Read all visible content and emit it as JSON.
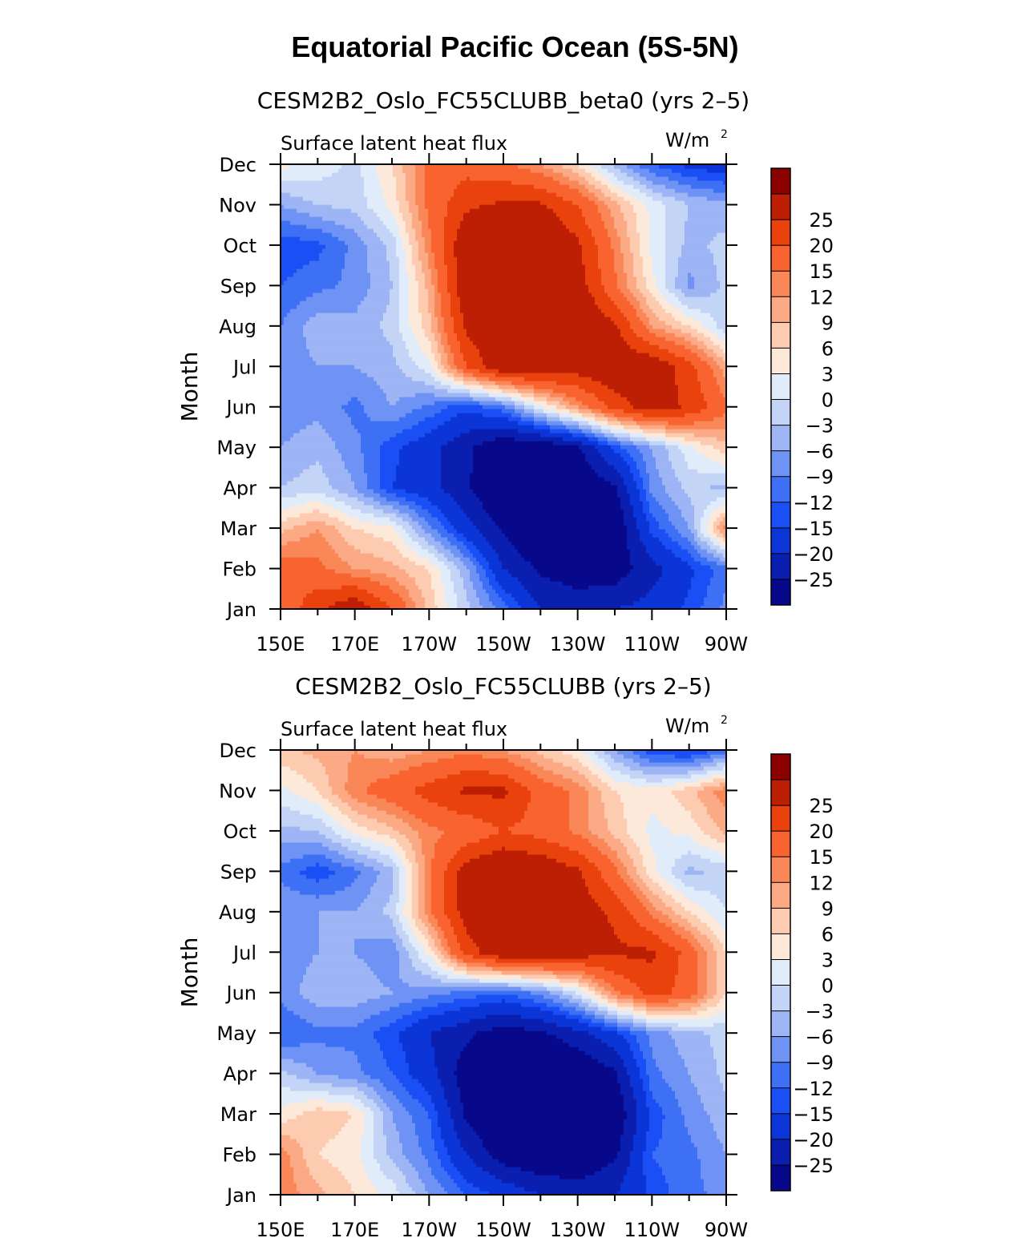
{
  "figure": {
    "title": "Equatorial Pacific Ocean (5S-5N)"
  },
  "colorbar": {
    "colors": [
      "#08088a",
      "#0a1fb0",
      "#0b35d6",
      "#1a4ff5",
      "#3e70f5",
      "#6f93f5",
      "#9db5f5",
      "#c3d4f6",
      "#e1ecfa",
      "#fde9d9",
      "#fccbb0",
      "#fbaa85",
      "#fa8758",
      "#f86330",
      "#e9420c",
      "#bd1f05",
      "#8c0000"
    ],
    "levels": [
      "-25",
      "-20",
      "-15",
      "-12",
      "-9",
      "-6",
      "-3",
      "0",
      "3",
      "6",
      "9",
      "12",
      "15",
      "20",
      "25"
    ]
  },
  "chart_data": [
    {
      "type": "heatmap",
      "title": "CESM2B2_Oslo_FC55CLUBB_beta0 (yrs 2–5)",
      "subtitle_left": "Surface latent heat flux",
      "units": "W/m",
      "units_sup": "2",
      "ylabel": "Month",
      "xticks": [
        "150E",
        "170E",
        "170W",
        "150W",
        "130W",
        "110W",
        "90W"
      ],
      "yticks": [
        "Jan",
        "Feb",
        "Mar",
        "Apr",
        "May",
        "Jun",
        "Jul",
        "Aug",
        "Sep",
        "Oct",
        "Nov",
        "Dec"
      ],
      "x_lon_east": [
        150,
        160,
        170,
        180,
        190,
        200,
        210,
        220,
        230,
        240,
        250,
        260,
        270
      ],
      "month_index": [
        1,
        2,
        3,
        4,
        5,
        6,
        7,
        8,
        9,
        10,
        11,
        12
      ],
      "z": [
        [
          16,
          24,
          30,
          20,
          8,
          -2,
          -10,
          -20,
          -22,
          -20,
          -18,
          -14,
          -8
        ],
        [
          18,
          16,
          12,
          10,
          6,
          -5,
          -20,
          -26,
          -28,
          -28,
          -22,
          -16,
          -10
        ],
        [
          8,
          12,
          6,
          4,
          -8,
          -18,
          -26,
          -32,
          -32,
          -30,
          -14,
          -6,
          14
        ],
        [
          -3,
          -1,
          -6,
          -15,
          -18,
          -24,
          -32,
          -32,
          -30,
          -26,
          -8,
          -2,
          -4
        ],
        [
          -6,
          -4,
          -8,
          -14,
          -18,
          -24,
          -30,
          -30,
          -26,
          -14,
          -6,
          2,
          8
        ],
        [
          -8,
          -7,
          -10,
          -6,
          -10,
          -14,
          -10,
          2,
          12,
          22,
          28,
          24,
          16
        ],
        [
          -8,
          -6,
          -6,
          -4,
          2,
          20,
          30,
          30,
          28,
          30,
          30,
          22,
          10
        ],
        [
          -9,
          -4,
          -5,
          -2,
          8,
          26,
          32,
          34,
          32,
          26,
          12,
          6,
          -2
        ],
        [
          -12,
          -10,
          -8,
          -3,
          10,
          30,
          34,
          32,
          28,
          16,
          4,
          -7,
          -2
        ],
        [
          -14,
          -13,
          -8,
          -2,
          14,
          30,
          34,
          32,
          26,
          14,
          2,
          -4,
          -2
        ],
        [
          -6,
          -3,
          -2,
          4,
          16,
          24,
          26,
          26,
          20,
          10,
          2,
          -3,
          -5
        ],
        [
          4,
          2,
          -1,
          6,
          16,
          18,
          16,
          12,
          6,
          -4,
          -12,
          -16,
          -18
        ]
      ]
    },
    {
      "type": "heatmap",
      "title": "CESM2B2_Oslo_FC55CLUBB (yrs 2–5)",
      "subtitle_left": "Surface latent heat flux",
      "units": "W/m",
      "units_sup": "2",
      "ylabel": "Month",
      "xticks": [
        "150E",
        "170E",
        "170W",
        "150W",
        "130W",
        "110W",
        "90W"
      ],
      "yticks": [
        "Jan",
        "Feb",
        "Mar",
        "Apr",
        "May",
        "Jun",
        "Jul",
        "Aug",
        "Sep",
        "Oct",
        "Nov",
        "Dec"
      ],
      "x_lon_east": [
        150,
        160,
        170,
        180,
        190,
        200,
        210,
        220,
        230,
        240,
        250,
        260,
        270
      ],
      "month_index": [
        1,
        2,
        3,
        4,
        5,
        6,
        7,
        8,
        9,
        10,
        11,
        12
      ],
      "z": [
        [
          14,
          10,
          6,
          2,
          -6,
          -12,
          -16,
          -20,
          -22,
          -20,
          -14,
          -10,
          -8
        ],
        [
          14,
          6,
          4,
          -4,
          -10,
          -20,
          -28,
          -30,
          -30,
          -26,
          -12,
          -10,
          -6
        ],
        [
          4,
          8,
          6,
          -6,
          -12,
          -26,
          -32,
          -32,
          -32,
          -30,
          -14,
          -8,
          -4
        ],
        [
          -2,
          -6,
          -8,
          -12,
          -18,
          -28,
          -32,
          -32,
          -30,
          -26,
          -10,
          -6,
          -2
        ],
        [
          -12,
          -10,
          -10,
          -14,
          -20,
          -24,
          -28,
          -26,
          -22,
          -16,
          -8,
          -4,
          -2
        ],
        [
          -8,
          -4,
          -4,
          -6,
          -8,
          -10,
          -12,
          -8,
          0,
          14,
          22,
          18,
          6
        ],
        [
          -8,
          -6,
          -6,
          -8,
          4,
          22,
          30,
          30,
          28,
          26,
          26,
          18,
          6
        ],
        [
          -6,
          -6,
          -6,
          -2,
          14,
          28,
          32,
          32,
          28,
          24,
          14,
          6,
          0
        ],
        [
          -10,
          -14,
          -10,
          -4,
          14,
          28,
          32,
          30,
          26,
          16,
          4,
          -4,
          -2
        ],
        [
          -4,
          -3,
          4,
          8,
          14,
          16,
          20,
          18,
          14,
          8,
          2,
          4,
          10
        ],
        [
          2,
          6,
          14,
          18,
          22,
          26,
          26,
          18,
          14,
          6,
          4,
          8,
          14
        ],
        [
          8,
          10,
          12,
          10,
          12,
          14,
          12,
          8,
          4,
          -6,
          -14,
          -16,
          -10
        ]
      ]
    }
  ]
}
